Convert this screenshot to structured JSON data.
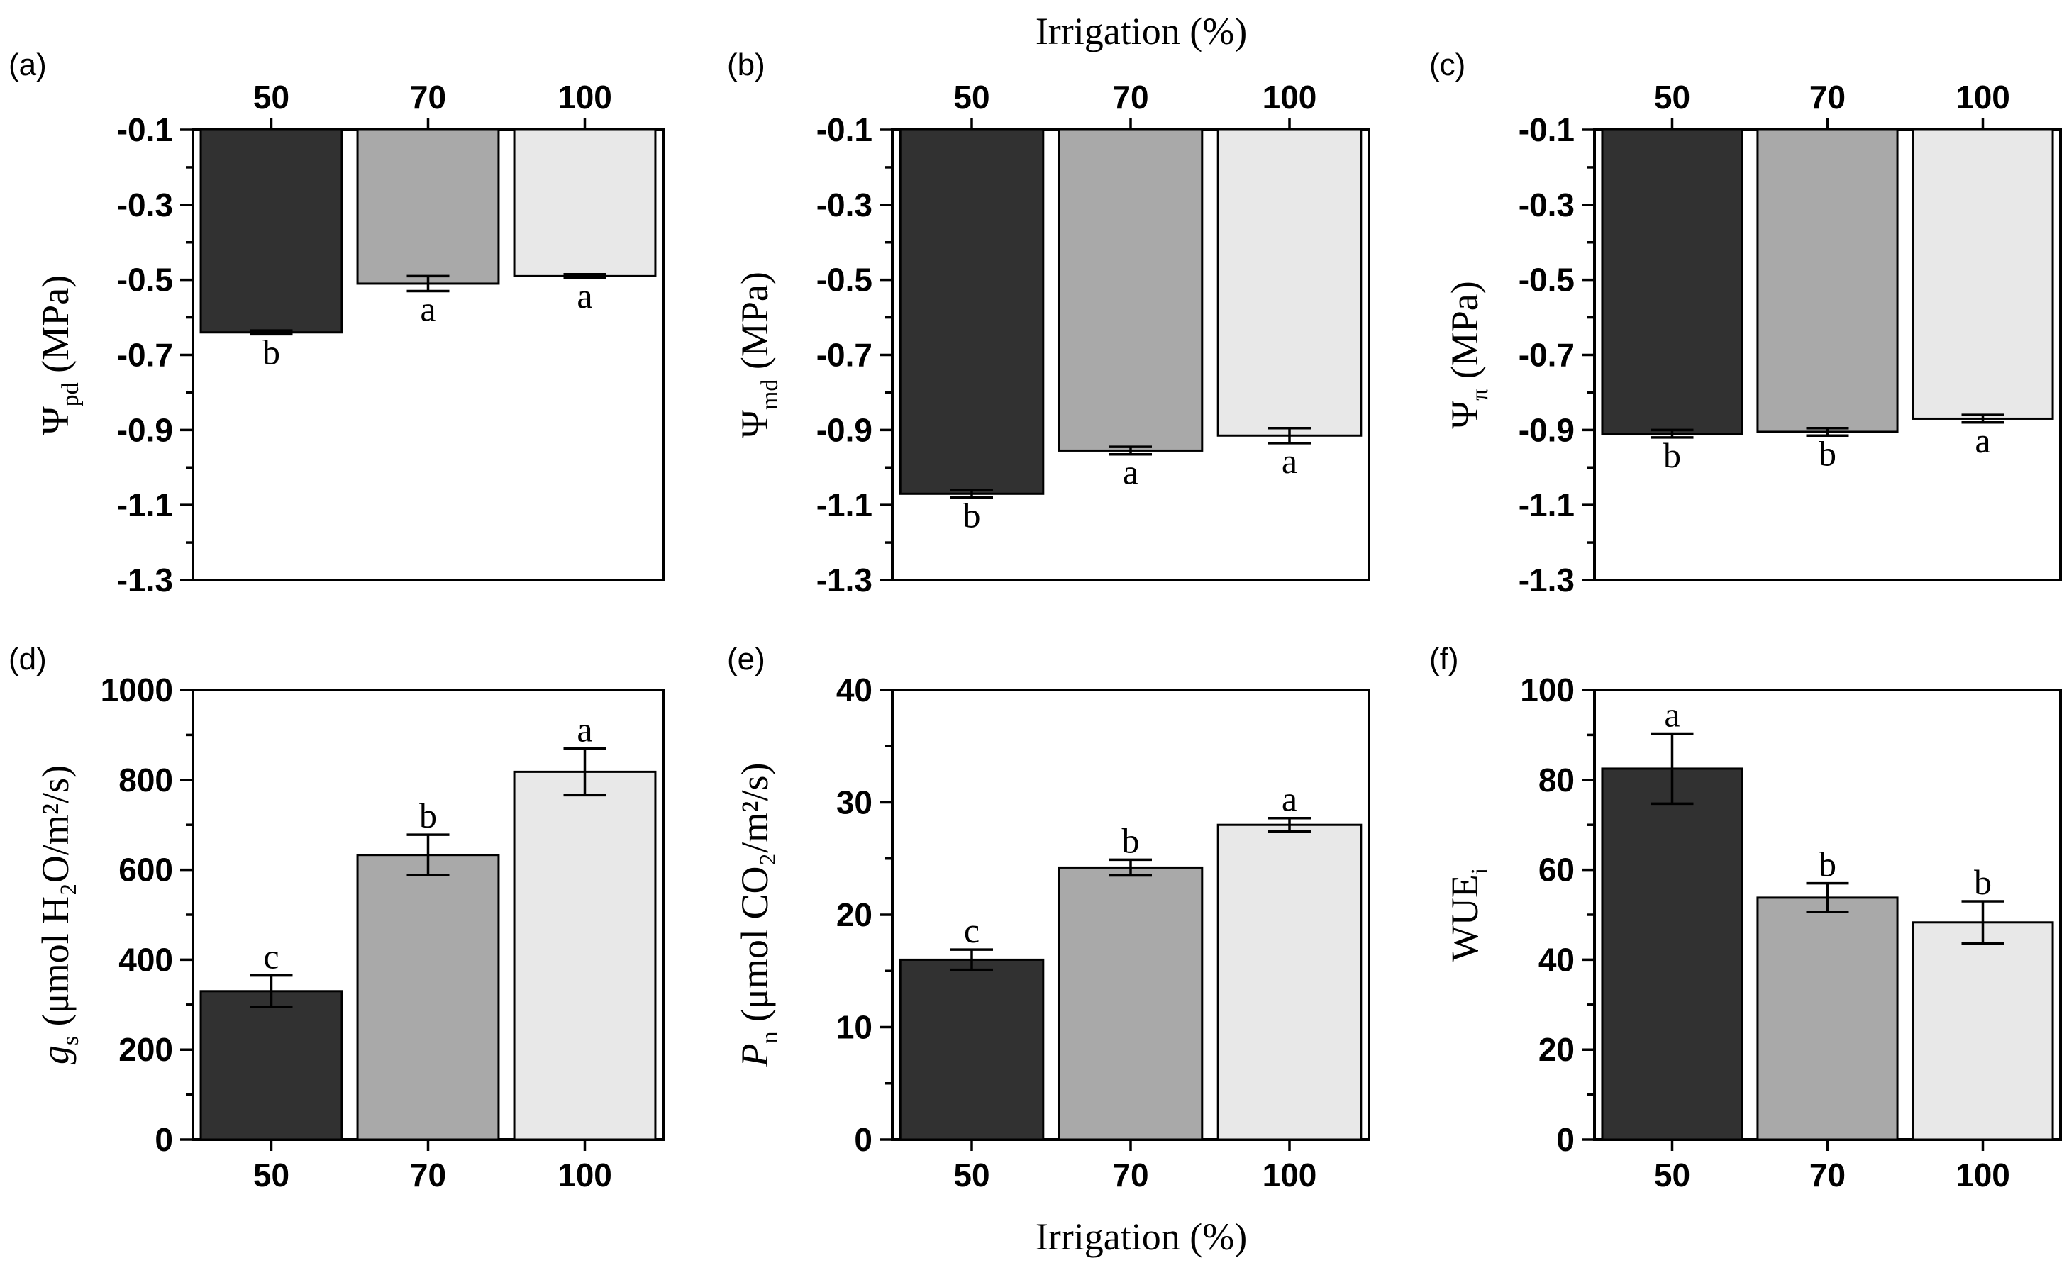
{
  "figure": {
    "top_axis_title": "Irrigation (%)",
    "bottom_axis_title": "Irrigation (%)"
  },
  "colors": {
    "bar_50": "#313131",
    "bar_70": "#a9a9a9",
    "bar_100": "#e8e8e8",
    "axis": "#000000"
  },
  "chart_data": [
    {
      "id": "a",
      "panel_label": "(a)",
      "type": "bar",
      "categories": [
        "50",
        "70",
        "100"
      ],
      "values": [
        -0.64,
        -0.51,
        -0.49
      ],
      "errors": [
        0.005,
        0.02,
        0.005
      ],
      "letters": [
        "b",
        "a",
        "a"
      ],
      "ylabel": {
        "main": "Ψ",
        "sub": "pd",
        "rest": " (MPa)"
      },
      "ylim": [
        -1.3,
        -0.1
      ],
      "yticks": [
        "-0.1",
        "-0.3",
        "-0.5",
        "-0.7",
        "-0.9",
        "-1.1",
        "-1.3"
      ],
      "category_axis": "top"
    },
    {
      "id": "b",
      "panel_label": "(b)",
      "type": "bar",
      "categories": [
        "50",
        "70",
        "100"
      ],
      "values": [
        -1.07,
        -0.955,
        -0.915
      ],
      "errors": [
        0.01,
        0.01,
        0.02
      ],
      "letters": [
        "b",
        "a",
        "a"
      ],
      "ylabel": {
        "main": "Ψ",
        "sub": "md",
        "rest": " (MPa)"
      },
      "ylim": [
        -1.3,
        -0.1
      ],
      "yticks": [
        "-0.1",
        "-0.3",
        "-0.5",
        "-0.7",
        "-0.9",
        "-1.1",
        "-1.3"
      ],
      "category_axis": "top"
    },
    {
      "id": "c",
      "panel_label": "(c)",
      "type": "bar",
      "categories": [
        "50",
        "70",
        "100"
      ],
      "values": [
        -0.91,
        -0.905,
        -0.87
      ],
      "errors": [
        0.01,
        0.01,
        0.01
      ],
      "letters": [
        "b",
        "b",
        "a"
      ],
      "ylabel": {
        "main": "Ψ",
        "sub": "π",
        "rest": " (MPa)"
      },
      "ylim": [
        -1.3,
        -0.1
      ],
      "yticks": [
        "-0.1",
        "-0.3",
        "-0.5",
        "-0.7",
        "-0.9",
        "-1.1",
        "-1.3"
      ],
      "category_axis": "top"
    },
    {
      "id": "d",
      "panel_label": "(d)",
      "type": "bar",
      "categories": [
        "50",
        "70",
        "100"
      ],
      "values": [
        330,
        633,
        818
      ],
      "errors": [
        35,
        45,
        52
      ],
      "letters": [
        "c",
        "b",
        "a"
      ],
      "ylabel": {
        "main": "g",
        "sub": "s",
        "rest": " (μmol H₂O/m²/s)"
      },
      "ylim": [
        0,
        1000
      ],
      "yticks": [
        "0",
        "200",
        "400",
        "600",
        "800",
        "1000"
      ],
      "category_axis": "bottom"
    },
    {
      "id": "e",
      "panel_label": "(e)",
      "type": "bar",
      "categories": [
        "50",
        "70",
        "100"
      ],
      "values": [
        16,
        24.2,
        28
      ],
      "errors": [
        0.9,
        0.7,
        0.6
      ],
      "letters": [
        "c",
        "b",
        "a"
      ],
      "ylabel": {
        "main": "P",
        "sub": "n",
        "rest": " (μmol CO₂/m²/s)"
      },
      "ylim": [
        0,
        40
      ],
      "yticks": [
        "0",
        "10",
        "20",
        "30",
        "40"
      ],
      "category_axis": "bottom"
    },
    {
      "id": "f",
      "panel_label": "(f)",
      "type": "bar",
      "categories": [
        "50",
        "70",
        "100"
      ],
      "values": [
        82.5,
        53.8,
        48.3
      ],
      "errors": [
        7.8,
        3.2,
        4.7
      ],
      "letters": [
        "a",
        "b",
        "b"
      ],
      "ylabel": {
        "main": "WUE",
        "sub": "i",
        "rest": ""
      },
      "ylim": [
        0,
        100
      ],
      "yticks": [
        "0",
        "20",
        "40",
        "60",
        "80",
        "100"
      ],
      "category_axis": "bottom"
    }
  ]
}
